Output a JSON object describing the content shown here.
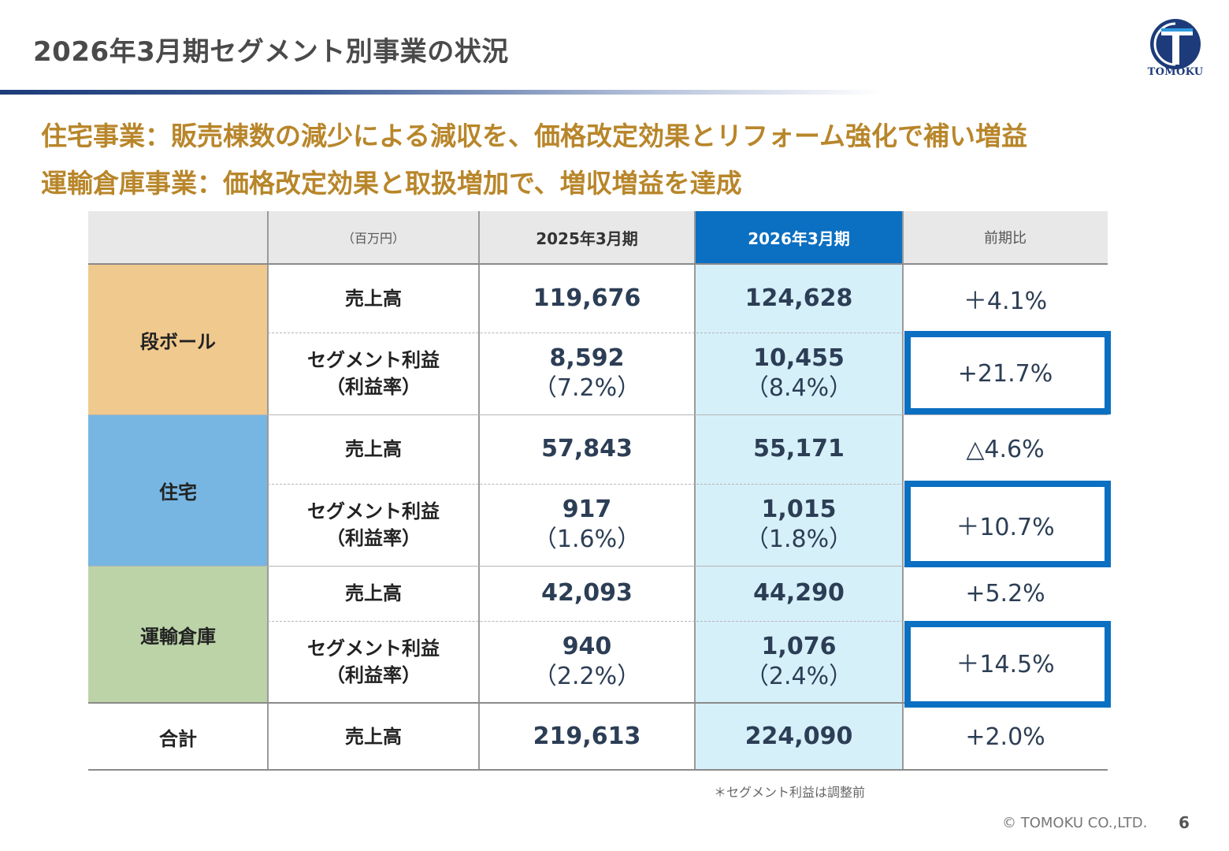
{
  "page": {
    "title": "2026年3月期セグメント別事業の状況",
    "logo_text": "TOMOKU",
    "headline_1": "住宅事業：販売棟数の減少による減収を、価格改定効果とリフォーム強化で補い増益",
    "headline_2": "運輸倉庫事業：価格改定効果と取扱増加で、増収増益を達成",
    "footnote": "＊セグメント利益は調整前",
    "copyright": "© TOMOKU CO.,LTD.",
    "page_number": "6"
  },
  "colors": {
    "title_rule": "#1f3c7a",
    "headline": "#b8862a",
    "seg_cardboard": "#f0c98e",
    "seg_housing": "#77b6e3",
    "seg_logistics": "#bcd3a8",
    "current_period_header": "#0b6fc2",
    "current_period_column": "#d6f0f9",
    "highlight_box": "#0b6fc2"
  },
  "table": {
    "unit": "（百万円）",
    "col_prev": "2025年3月期",
    "col_curr": "2026年3月期",
    "col_change": "前期比",
    "seg1": {
      "name": "段ボール",
      "r1": {
        "label": "売上高",
        "prev": "119,676",
        "curr": "124,628",
        "change": "＋4.1%"
      },
      "r2": {
        "label1": "セグメント利益",
        "label2": "（利益率）",
        "prev1": "8,592",
        "prev2": "（7.2%）",
        "curr1": "10,455",
        "curr2": "（8.4%）",
        "change": "+21.7%"
      }
    },
    "seg2": {
      "name": "住宅",
      "r1": {
        "label": "売上高",
        "prev": "57,843",
        "curr": "55,171",
        "change": "△4.6%"
      },
      "r2": {
        "label1": "セグメント利益",
        "label2": "（利益率）",
        "prev1": "917",
        "prev2": "（1.6%）",
        "curr1": "1,015",
        "curr2": "（1.8%）",
        "change": "＋10.7%"
      }
    },
    "seg3": {
      "name": "運輸倉庫",
      "r1": {
        "label": "売上高",
        "prev": "42,093",
        "curr": "44,290",
        "change": "+5.2%"
      },
      "r2": {
        "label1": "セグメント利益",
        "label2": "（利益率）",
        "prev1": "940",
        "prev2": "（2.2%）",
        "curr1": "1,076",
        "curr2": "（2.4%）",
        "change": "＋14.5%"
      }
    },
    "total": {
      "name": "合計",
      "label": "売上高",
      "prev": "219,613",
      "curr": "224,090",
      "change": "+2.0%"
    }
  }
}
